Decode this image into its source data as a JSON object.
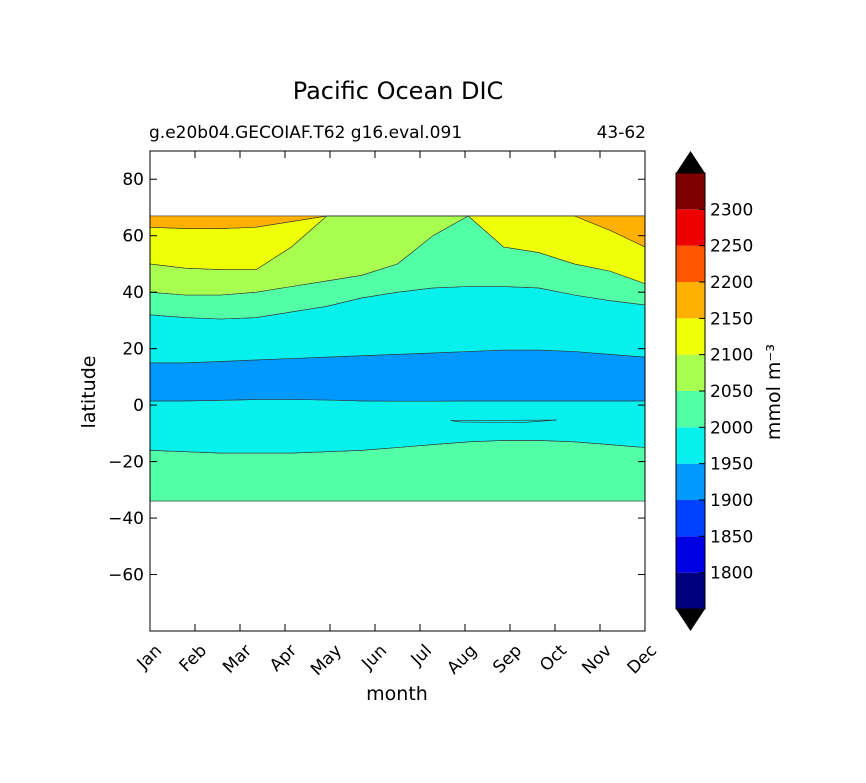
{
  "chart_data": {
    "type": "heatmap",
    "title": "Pacific Ocean DIC",
    "subtitle_left": "g.e20b04.GECOIAF.T62 g16.eval.091",
    "subtitle_right": "43-62",
    "xlabel": "month",
    "ylabel": "latitude",
    "x_categories": [
      "Jan",
      "Feb",
      "Mar",
      "Apr",
      "May",
      "Jun",
      "Jul",
      "Aug",
      "Sep",
      "Oct",
      "Nov",
      "Dec"
    ],
    "ylim": [
      -80,
      90
    ],
    "y_ticks": [
      80,
      60,
      40,
      20,
      0,
      -20,
      -40,
      -60
    ],
    "y_tick_labels": [
      "80",
      "60",
      "40",
      "20",
      "0",
      "−20",
      "−40",
      "−60"
    ],
    "data_lat_range": [
      -34,
      67
    ],
    "grid": false,
    "colorbar": {
      "label": "mmol m⁻³",
      "levels": [
        1750,
        1800,
        1850,
        1900,
        1950,
        2000,
        2050,
        2100,
        2150,
        2200,
        2250,
        2300,
        2350
      ],
      "tick_labels": [
        "1800",
        "1850",
        "1900",
        "1950",
        "2000",
        "2050",
        "2100",
        "2150",
        "2200",
        "2250",
        "2300"
      ],
      "colors": [
        "#00007f",
        "#0000e5",
        "#0040ff",
        "#0099ff",
        "#06f0ee",
        "#53ffa6",
        "#a8ff4f",
        "#eeff06",
        "#ffb000",
        "#ff5600",
        "#ee0000",
        "#7f0000"
      ],
      "extend_low_color": "#000000",
      "extend_high_color": "#000000"
    },
    "contours": {
      "lat_2000_north": [
        32,
        31,
        30.5,
        31,
        33,
        35,
        38,
        40,
        41.5,
        42,
        42,
        41.5,
        39,
        37,
        35.5
      ],
      "lat_2050_north": [
        40,
        39,
        39,
        40,
        42,
        44,
        46,
        50,
        60,
        67,
        67,
        67,
        67,
        67,
        67
      ],
      "lat_2100_north": [
        50,
        48.5,
        48,
        48,
        56,
        67,
        67,
        67,
        67,
        67,
        56,
        54,
        50,
        47.5,
        43
      ],
      "lat_2150_north": [
        63,
        62.5,
        62.5,
        63,
        65,
        67,
        67,
        67,
        67,
        67,
        67,
        67,
        67,
        62,
        56
      ],
      "lat_1950_north": [
        15,
        15,
        15.5,
        16,
        16.5,
        17,
        17.5,
        18,
        18.5,
        19,
        19.5,
        19.5,
        19,
        18,
        17
      ],
      "lat_1950_south": [
        1.5,
        1.5,
        1.7,
        2,
        2,
        1.8,
        1.5,
        1.4,
        1.4,
        1.5,
        1.5,
        1.5,
        1.5,
        1.5,
        1.5
      ],
      "lat_2000_south": [
        -16,
        -16.5,
        -17,
        -17,
        -17,
        -16.5,
        -16,
        -15,
        -14,
        -13,
        -12.5,
        -12.5,
        -13,
        -14,
        -15
      ]
    }
  }
}
